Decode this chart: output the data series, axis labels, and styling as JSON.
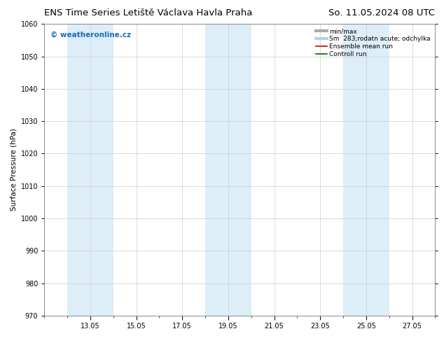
{
  "title_left": "ENS Time Series Letiště Václava Havla Praha",
  "title_right": "So. 11.05.2024 08 UTC",
  "ylabel": "Surface Pressure (hPa)",
  "ylim": [
    970,
    1060
  ],
  "yticks": [
    970,
    980,
    990,
    1000,
    1010,
    1020,
    1030,
    1040,
    1050,
    1060
  ],
  "xlim": [
    0,
    17
  ],
  "xtick_labels": [
    "13.05",
    "15.05",
    "17.05",
    "19.05",
    "21.05",
    "23.05",
    "25.05",
    "27.05"
  ],
  "xtick_positions": [
    2,
    4,
    6,
    8,
    10,
    12,
    14,
    16
  ],
  "shaded_bands": [
    {
      "x_start": 1.0,
      "x_end": 3.0,
      "color": "#ddeef8"
    },
    {
      "x_start": 7.0,
      "x_end": 9.0,
      "color": "#ddeef8"
    },
    {
      "x_start": 13.0,
      "x_end": 15.0,
      "color": "#ddeef8"
    }
  ],
  "watermark": "© weatheronline.cz",
  "watermark_color": "#1a6abf",
  "legend_entries": [
    {
      "label": "min/max",
      "color": "#aaaaaa",
      "lw": 3,
      "type": "line"
    },
    {
      "label": "Sm  283;rodatn acute; odchylka",
      "color": "#bbcfe0",
      "lw": 3,
      "type": "line"
    },
    {
      "label": "Ensemble mean run",
      "color": "#cc0000",
      "lw": 1.2,
      "type": "line"
    },
    {
      "label": "Controll run",
      "color": "#006600",
      "lw": 1.2,
      "type": "line"
    }
  ],
  "bg_color": "#ffffff",
  "plot_bg_color": "#ffffff",
  "grid_color": "#cccccc",
  "title_fontsize": 9.5,
  "axis_fontsize": 7.5,
  "tick_fontsize": 7,
  "watermark_fontsize": 7.5,
  "legend_fontsize": 6.5
}
